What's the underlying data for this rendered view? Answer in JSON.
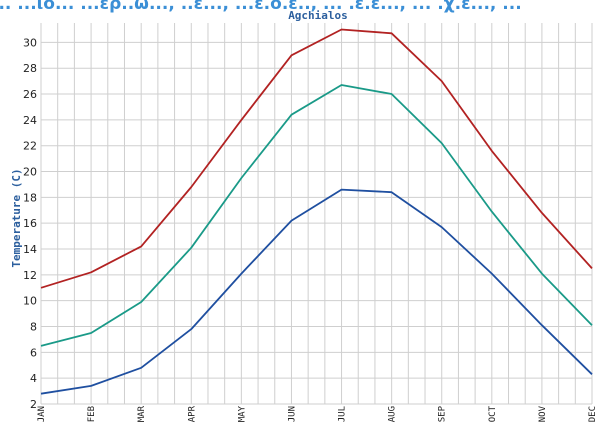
{
  "page": {
    "header_text": "... ...ιο... ...ερ..ω..., ..ε..., ...ε.ο.ε.., ... .ε.ε..., ... .χ.ε..., ..."
  },
  "chart_data": {
    "type": "line",
    "title": "Agchialos",
    "ylabel": "Temperature (C)",
    "xlabel": "",
    "categories": [
      "JAN",
      "FEB",
      "MAR",
      "APR",
      "MAY",
      "JUN",
      "JUL",
      "AUG",
      "SEP",
      "OCT",
      "NOV",
      "DEC"
    ],
    "ylim": [
      2,
      31.5
    ],
    "yticks": [
      2,
      4,
      6,
      8,
      10,
      12,
      14,
      16,
      18,
      20,
      22,
      24,
      26,
      28,
      30
    ],
    "grid": true,
    "legend": "none",
    "series": [
      {
        "color": "#b22222",
        "values": [
          11.0,
          12.2,
          14.2,
          18.8,
          24.0,
          29.0,
          31.0,
          30.7,
          27.0,
          21.6,
          16.8,
          12.5
        ]
      },
      {
        "color": "#1a9a88",
        "values": [
          6.5,
          7.5,
          9.9,
          14.1,
          19.5,
          24.4,
          26.7,
          26.0,
          22.2,
          16.9,
          12.1,
          8.1
        ]
      },
      {
        "color": "#1f4fa0",
        "values": [
          2.8,
          3.4,
          4.8,
          7.8,
          12.1,
          16.2,
          18.6,
          18.4,
          15.7,
          12.1,
          8.1,
          4.3
        ]
      }
    ]
  }
}
